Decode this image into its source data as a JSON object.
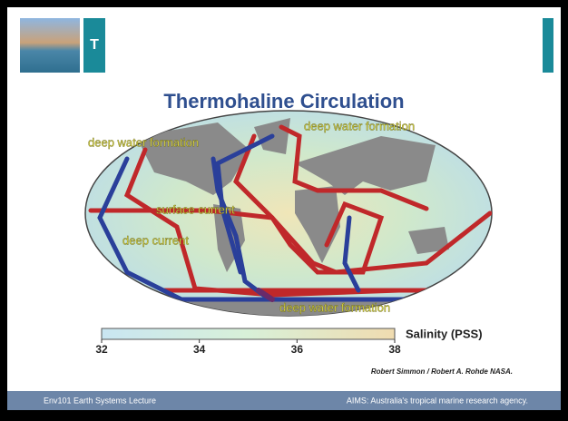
{
  "header": {
    "title_initial": "T"
  },
  "slide": {
    "title": "Thermohaline Circulation",
    "map_labels": [
      "deep water formation",
      "deep water formation",
      "surface current",
      "deep current",
      "deep water formation"
    ],
    "salinity_scale": {
      "label": "Salinity (PSS)",
      "lim": [
        32,
        38
      ],
      "ticks": [
        32,
        34,
        36,
        38
      ]
    },
    "credit": "Robert Simmon /  Robert A. Rohde NASA."
  },
  "footer": {
    "left": "Env101 Earth Systems Lecture",
    "right": "AIMS: Australia's tropical marine research agency."
  }
}
